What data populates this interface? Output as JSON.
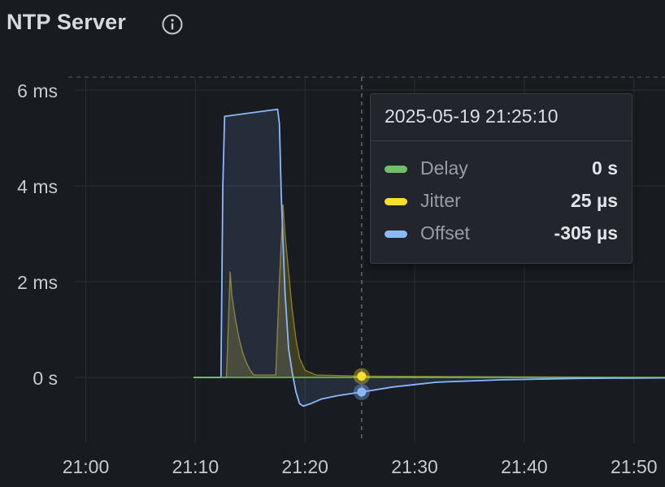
{
  "panel": {
    "title": "NTP Server",
    "info_icon": "info-circle-icon"
  },
  "tooltip": {
    "time": "2025-05-19 21:25:10",
    "rows": [
      {
        "label": "Delay",
        "value": "0 s",
        "color": "#73bf69"
      },
      {
        "label": "Jitter",
        "value": "25 µs",
        "color": "#fade2a"
      },
      {
        "label": "Offset",
        "value": "-305 µs",
        "color": "#8ab8ff"
      }
    ]
  },
  "chart_data": {
    "type": "line",
    "x_unit": "time (HH:MM)",
    "y_unit": "ms",
    "xlim": [
      "20:59:00",
      "21:52:50"
    ],
    "ylim": [
      -1.3,
      6.3
    ],
    "x_ticks": [
      "21:00",
      "21:10",
      "21:20",
      "21:30",
      "21:40",
      "21:50"
    ],
    "y_ticks": [
      {
        "value": 6,
        "label": "6 ms"
      },
      {
        "value": 4,
        "label": "4 ms"
      },
      {
        "value": 2,
        "label": "2 ms"
      },
      {
        "value": 0,
        "label": "0 s"
      }
    ],
    "grid": true,
    "cursor_time": "21:25:10",
    "series": [
      {
        "name": "Delay",
        "color": "#73bf69",
        "x": [
          "21:09:50",
          "21:52:50"
        ],
        "y": [
          0,
          0
        ]
      },
      {
        "name": "Jitter",
        "color": "#fade2a",
        "x": [
          "21:09:50",
          "21:12:50",
          "21:13:10",
          "21:13:20",
          "21:13:40",
          "21:14:00",
          "21:14:20",
          "21:14:40",
          "21:15:00",
          "21:15:20",
          "21:17:20",
          "21:17:40",
          "21:18:00",
          "21:18:10",
          "21:18:30",
          "21:18:50",
          "21:19:10",
          "21:19:30",
          "21:20:00",
          "21:21:00",
          "21:25:10",
          "21:52:50"
        ],
        "y": [
          0,
          0,
          2.2,
          1.7,
          1.2,
          0.8,
          0.5,
          0.3,
          0.15,
          0.05,
          0.05,
          2.0,
          3.6,
          3.0,
          2.2,
          1.4,
          0.8,
          0.4,
          0.15,
          0.05,
          0.025,
          0.0
        ]
      },
      {
        "name": "Offset",
        "color": "#8ab8ff",
        "x": [
          "21:09:50",
          "21:12:20",
          "21:12:30",
          "21:12:40",
          "21:17:30",
          "21:17:40",
          "21:17:50",
          "21:18:10",
          "21:18:30",
          "21:18:50",
          "21:19:10",
          "21:19:30",
          "21:19:50",
          "21:20:30",
          "21:21:30",
          "21:23:00",
          "21:25:10",
          "21:28:00",
          "21:32:00",
          "21:38:00",
          "21:45:00",
          "21:52:50"
        ],
        "y": [
          0,
          0,
          4.0,
          5.45,
          5.6,
          5.3,
          3.8,
          1.8,
          0.6,
          0.1,
          -0.3,
          -0.55,
          -0.6,
          -0.55,
          -0.45,
          -0.38,
          -0.305,
          -0.2,
          -0.1,
          -0.05,
          -0.02,
          -0.01
        ]
      }
    ]
  }
}
